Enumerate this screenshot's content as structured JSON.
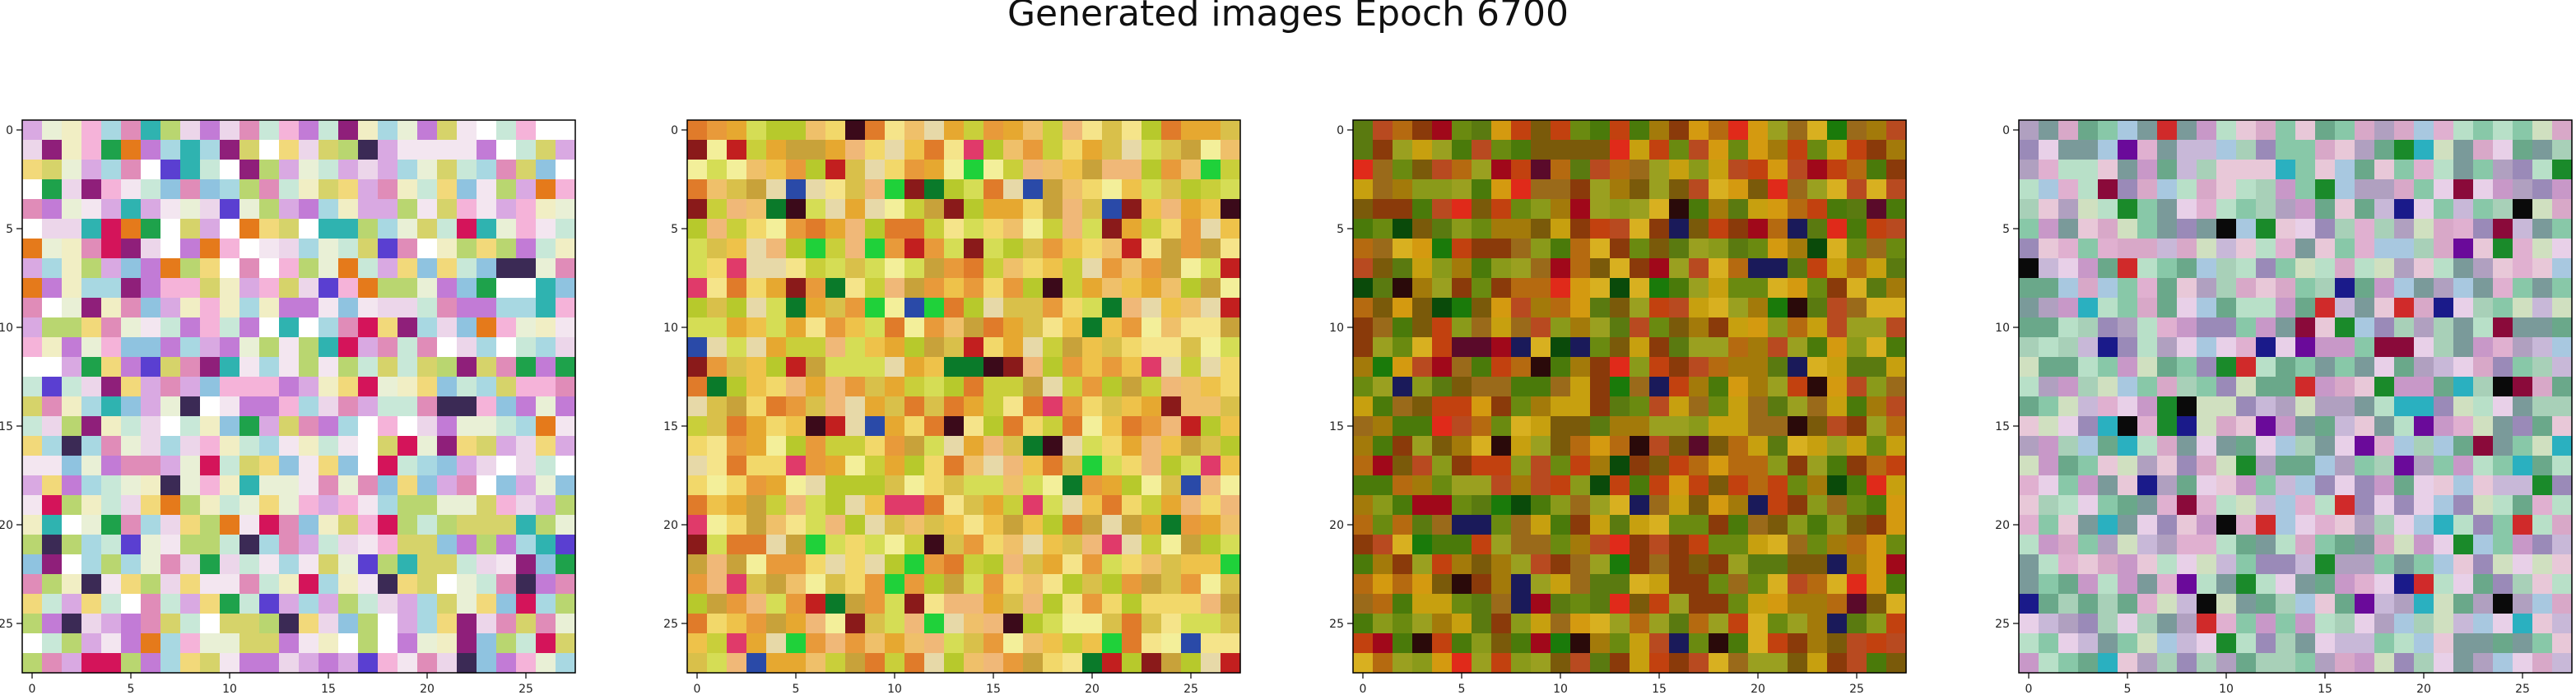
{
  "title": "Generated images Epoch 6700",
  "chart_data": [
    {
      "type": "heatmap",
      "grid": [
        28,
        28
      ],
      "xticks": [
        0,
        5,
        10,
        15,
        20,
        25
      ],
      "yticks": [
        0,
        5,
        10,
        15,
        20,
        25
      ],
      "xlim": [
        -0.5,
        27.5
      ],
      "ylim": [
        27.5,
        -0.5
      ],
      "palette": [
        "#f3e6f0",
        "#ecd6ea",
        "#f5b3d9",
        "#d9a9e2",
        "#f1eec4",
        "#e9f0d6",
        "#c8e8d8",
        "#a8d8e2",
        "#f2d97a",
        "#d6d36a",
        "#b9d670",
        "#e08cb8",
        "#8fc3e0",
        "#c27bd6",
        "#ffffff"
      ],
      "accents": [
        "#d4145a",
        "#3b2a55",
        "#2fb3b0",
        "#1ea24b",
        "#8f1f7a",
        "#e57a1b",
        "#5a3fd1"
      ]
    },
    {
      "type": "heatmap",
      "grid": [
        28,
        28
      ],
      "xticks": [
        0,
        5,
        10,
        15,
        20,
        25
      ],
      "yticks": [
        0,
        5,
        10,
        15,
        20,
        25
      ],
      "xlim": [
        -0.5,
        27.5
      ],
      "ylim": [
        27.5,
        -0.5
      ],
      "palette": [
        "#f2d86a",
        "#eec24a",
        "#f5e48a",
        "#e6a830",
        "#d9c04a",
        "#c9cf3a",
        "#b7c92c",
        "#e89a3a",
        "#f0b878",
        "#e7d9a8",
        "#f3ef9a",
        "#e07b2a",
        "#c8a23a",
        "#efc06a",
        "#d5dd55"
      ],
      "accents": [
        "#c21f1f",
        "#8a1a1a",
        "#1fd13a",
        "#2a4aa8",
        "#3b0a1a",
        "#e03a6a",
        "#0a7a2a"
      ]
    },
    {
      "type": "heatmap",
      "grid": [
        28,
        28
      ],
      "xticks": [
        0,
        5,
        10,
        15,
        20,
        25
      ],
      "yticks": [
        0,
        5,
        10,
        15,
        20,
        25
      ],
      "xlim": [
        -0.5,
        27.5
      ],
      "ylim": [
        27.5,
        -0.5
      ],
      "palette": [
        "#6a8a10",
        "#8a9a1a",
        "#b56a10",
        "#c2410f",
        "#9a6a1a",
        "#5a7a10",
        "#d49a10",
        "#a37a0a",
        "#c7a00f",
        "#7a5a0a",
        "#b84a20",
        "#8a3a0a",
        "#4a7a0a",
        "#d8b020",
        "#9aa020"
      ],
      "accents": [
        "#1a7a0a",
        "#2a0a0a",
        "#a0081a",
        "#1a1a5a",
        "#0a4a0a",
        "#e02a1a",
        "#5a0a2a"
      ]
    },
    {
      "type": "heatmap",
      "grid": [
        28,
        28
      ],
      "xticks": [
        0,
        5,
        10,
        15,
        20,
        25
      ],
      "yticks": [
        0,
        5,
        10,
        15,
        20,
        25
      ],
      "xlim": [
        -0.5,
        27.5
      ],
      "ylim": [
        27.5,
        -0.5
      ],
      "palette": [
        "#d8a8c8",
        "#a8d0b8",
        "#c8b8d8",
        "#e8c8d8",
        "#88c8a8",
        "#b8e0c8",
        "#9a8ab8",
        "#c898c8",
        "#6aa88a",
        "#e0b0d0",
        "#a8c8e0",
        "#d0e0c0",
        "#7a9a9a",
        "#e8d0e8",
        "#b0a0c0"
      ],
      "accents": [
        "#1a8a2a",
        "#1a1a8a",
        "#0a0a0a",
        "#8a0a3a",
        "#2ab0c0",
        "#d02a2a",
        "#6a0a9a"
      ]
    }
  ]
}
